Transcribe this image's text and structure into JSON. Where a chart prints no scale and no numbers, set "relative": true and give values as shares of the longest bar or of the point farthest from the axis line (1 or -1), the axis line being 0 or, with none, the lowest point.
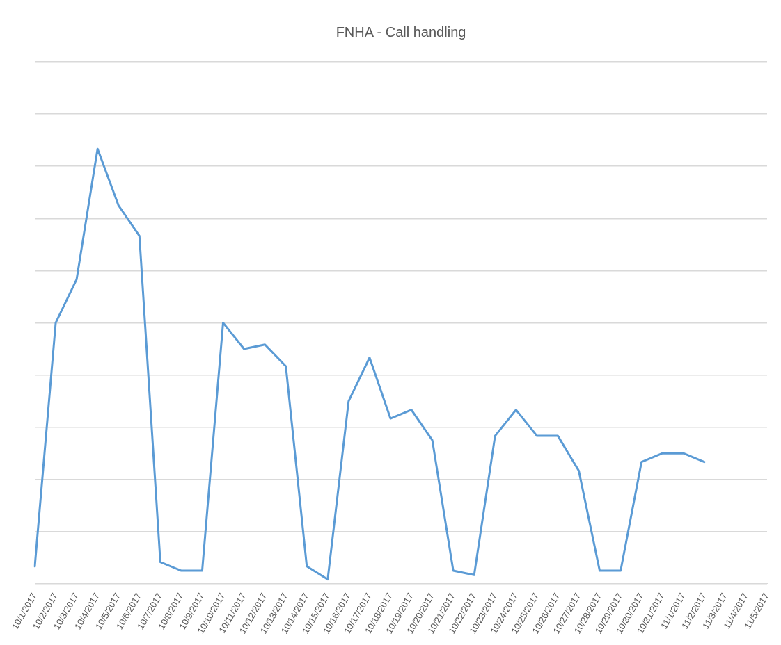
{
  "chart_data": {
    "type": "line",
    "title": "FNHA - Call handling",
    "relative": true,
    "grid": "y",
    "marker": "none",
    "categories": [
      "10/1/2017",
      "10/2/2017",
      "10/3/2017",
      "10/4/2017",
      "10/5/2017",
      "10/6/2017",
      "10/7/2017",
      "10/8/2017",
      "10/9/2017",
      "10/10/2017",
      "10/11/2017",
      "10/12/2017",
      "10/13/2017",
      "10/14/2017",
      "10/15/2017",
      "10/16/2017",
      "10/17/2017",
      "10/18/2017",
      "10/19/2017",
      "10/20/2017",
      "10/21/2017",
      "10/22/2017",
      "10/23/2017",
      "10/24/2017",
      "10/25/2017",
      "10/26/2017",
      "10/27/2017",
      "10/28/2017",
      "10/29/2017",
      "10/30/2017",
      "10/31/2017",
      "11/1/2017",
      "11/2/2017",
      "11/3/2017",
      "11/4/2017",
      "11/5/2017"
    ],
    "series": [
      {
        "color": "#5b9bd5",
        "values": [
          0.04,
          0.6,
          0.7,
          1.0,
          0.87,
          0.8,
          0.05,
          0.03,
          0.03,
          0.6,
          0.54,
          0.55,
          0.5,
          0.04,
          0.01,
          0.42,
          0.52,
          0.38,
          0.4,
          0.33,
          0.03,
          0.02,
          0.34,
          0.4,
          0.34,
          0.34,
          0.26,
          0.03,
          0.03,
          0.28,
          0.3,
          0.3,
          0.28,
          null,
          null,
          null
        ]
      }
    ]
  }
}
